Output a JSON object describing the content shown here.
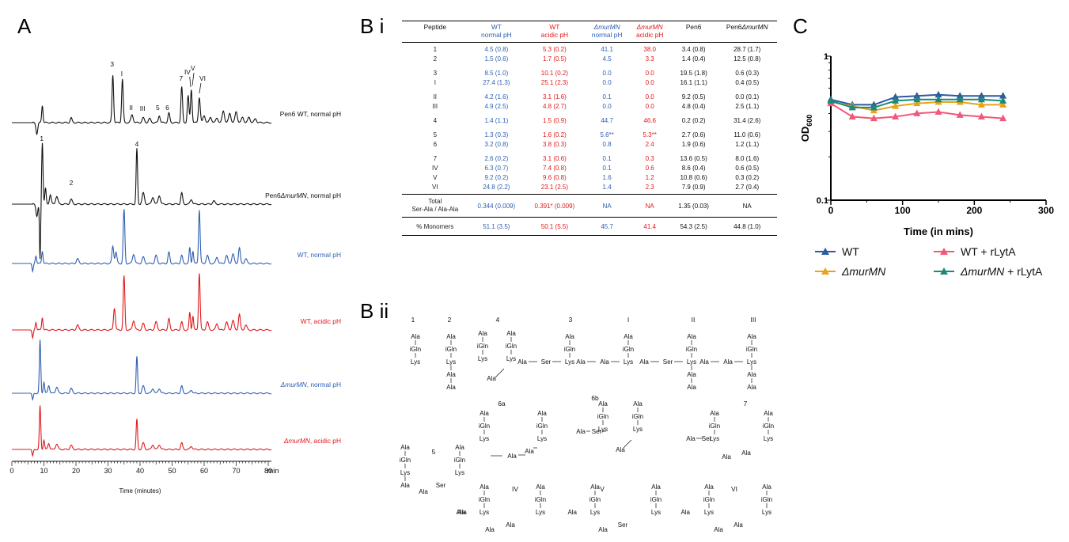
{
  "panel_letters": {
    "a": "A",
    "bi": "B i",
    "bii": "B ii",
    "c": "C"
  },
  "panel_a": {
    "x_ticks": [
      "0",
      "10",
      "20",
      "30",
      "40",
      "50",
      "60",
      "70",
      "80"
    ],
    "x_unit": "min",
    "x_label": "Time (minutes)",
    "trace_labels": [
      {
        "text": "Pen6 WT, normal pH",
        "color": "#111111"
      },
      {
        "prefix": "Pen6",
        "italic": "ΔmurMN",
        "suffix": ", normal pH",
        "color": "#111111"
      },
      {
        "text": "WT, normal pH",
        "color": "#2f5fb0"
      },
      {
        "text": "WT, acidic pH",
        "color": "#e0191c"
      },
      {
        "italic": "ΔmurMN",
        "suffix": ", normal pH",
        "color": "#2f5fb0"
      },
      {
        "italic": "ΔmurMN",
        "suffix": ", acidic pH",
        "color": "#e0191c"
      }
    ],
    "peak_labels_top": [
      "3",
      "I",
      "II",
      "III",
      "5",
      "6",
      "7",
      "IV",
      "V",
      "VI"
    ],
    "peak_labels_second": [
      "1",
      "2",
      "4"
    ]
  },
  "table": {
    "headers": [
      {
        "lines": [
          "Peptide"
        ],
        "color": "blk"
      },
      {
        "lines": [
          "WT",
          "normal pH"
        ],
        "color": "blue"
      },
      {
        "lines": [
          "WT",
          "acidic pH"
        ],
        "color": "red"
      },
      {
        "lines": [
          "ΔmurMN",
          "normal pH"
        ],
        "color": "blue"
      },
      {
        "lines": [
          "ΔmurMN",
          "acidic pH"
        ],
        "color": "red"
      },
      {
        "lines": [
          "Pen6"
        ],
        "color": "blk"
      },
      {
        "lines": [
          "Pen6ΔmurMN"
        ],
        "color": "blk"
      }
    ],
    "groups": [
      [
        [
          "1",
          "4.5  (0.8)",
          "5.3  (0.2)",
          "41.1",
          "38.0",
          "3.4  (0.8)",
          "28.7  (1.7)"
        ],
        [
          "2",
          "1.5  (0.6)",
          "1.7  (0.5)",
          "4.5",
          "3.3",
          "1.4  (0.4)",
          "12.5  (0.8)"
        ]
      ],
      [
        [
          "3",
          "8.5  (1.0)",
          "10.1  (0.2)",
          "0.0",
          "0.0",
          "19.5  (1.8)",
          "0.6  (0.3)"
        ],
        [
          "I",
          "27.4  (1.3)",
          "25.1  (2.3)",
          "0.0",
          "0.0",
          "16.1  (1.1)",
          "0.4  (0.5)"
        ]
      ],
      [
        [
          "II",
          "4.2  (1.6)",
          "3.1  (1.6)",
          "0.1",
          "0.0",
          "9.2  (0.5)",
          "0.0  (0.1)"
        ],
        [
          "III",
          "4.9  (2.5)",
          "4.8  (2.7)",
          "0.0",
          "0.0",
          "4.8  (0.4)",
          "2.5  (1.1)"
        ]
      ],
      [
        [
          "4",
          "1.4  (1.1)",
          "1.5  (0.9)",
          "44.7",
          "46.6",
          "0.2  (0.2)",
          "31.4  (2.6)"
        ]
      ],
      [
        [
          "5",
          "1.3  (0.3)",
          "1.6  (0.2)",
          "5.6**",
          "5.3**",
          "2.7  (0.6)",
          "11.0  (0.6)"
        ],
        [
          "6",
          "3.2  (0.8)",
          "3.8  (0.3)",
          "0.8",
          "2.4",
          "1.9  (0.6)",
          "1.2  (1.1)"
        ]
      ],
      [
        [
          "7",
          "2.6  (0.2)",
          "3.1  (0.6)",
          "0.1",
          "0.3",
          "13.6  (0.5)",
          "8.0  (1.6)"
        ],
        [
          "IV",
          "6.3  (0.7)",
          "7.4  (0.8)",
          "0.1",
          "0.6",
          "8.6  (0.4)",
          "0.6  (0.5)"
        ],
        [
          "V",
          "9.2  (0.2)",
          "9.6  (0.8)",
          "1.6",
          "1.2",
          "10.8  (0.6)",
          "0.3  (0.2)"
        ],
        [
          "VI",
          "24.8  (2.2)",
          "23.1  (2.5)",
          "1.4",
          "2.3",
          "7.9  (0.9)",
          "2.7  (0.4)"
        ]
      ]
    ],
    "total_row": {
      "label_lines": [
        "Total",
        "Ser-Ala / Ala-Ala"
      ],
      "values": [
        "0.344  (0.009)",
        "0.391*  (0.009)",
        "NA",
        "NA",
        "1.35  (0.03)",
        "NA"
      ]
    },
    "monomer_row": {
      "label": "% Monomers",
      "values": [
        "51.1  (3.5)",
        "50.1  (5.5)",
        "45.7",
        "41.4",
        "54.3  (2.5)",
        "44.8  (1.0)"
      ]
    }
  },
  "structures": {
    "numbers_row1": [
      "1",
      "2",
      "4",
      "3",
      "I",
      "II",
      "III"
    ],
    "numbers_row2": [
      "6a",
      "6b",
      "7",
      "5"
    ],
    "numbers_row3": [
      "IV",
      "V",
      "VI"
    ],
    "residues": {
      "ala": "Ala",
      "igln": "iGln",
      "lys": "Lys",
      "ser": "Ser"
    }
  },
  "chart_data": {
    "type": "line",
    "ylabel": "OD",
    "ylabel_sub": "600",
    "xlabel": "Time (in mins)",
    "x_ticks": [
      "0",
      "100",
      "200",
      "300"
    ],
    "y_ticks": [
      "0.1",
      "1"
    ],
    "xlim": [
      0,
      300
    ],
    "ylim": [
      0.1,
      1
    ],
    "y_scale": "log",
    "x": [
      0,
      30,
      60,
      90,
      120,
      150,
      180,
      210,
      240
    ],
    "series": [
      {
        "name": "WT",
        "color": "#2c5c9c",
        "values": [
          0.5,
          0.46,
          0.46,
          0.52,
          0.53,
          0.54,
          0.53,
          0.53,
          0.53
        ]
      },
      {
        "name": "ΔmurMN",
        "italic": true,
        "color": "#e8a319",
        "values": [
          0.48,
          0.45,
          0.42,
          0.45,
          0.47,
          0.48,
          0.48,
          0.46,
          0.46
        ]
      },
      {
        "name": "WT + rLytA",
        "color": "#f2587a",
        "values": [
          0.47,
          0.38,
          0.37,
          0.38,
          0.4,
          0.41,
          0.39,
          0.38,
          0.37
        ]
      },
      {
        "name": "ΔmurMN + rLytA",
        "italic": true,
        "color": "#1b8a7a",
        "values": [
          0.49,
          0.44,
          0.44,
          0.49,
          0.5,
          0.5,
          0.5,
          0.5,
          0.49
        ]
      }
    ],
    "legend_position": "bottom"
  }
}
